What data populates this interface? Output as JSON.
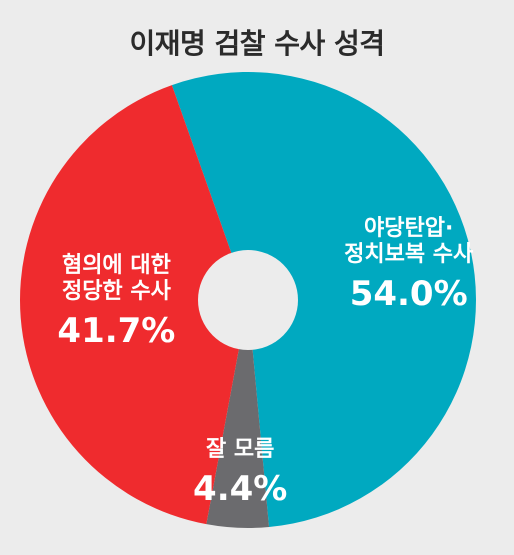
{
  "chart_data": {
    "type": "pie",
    "title": "이재명 검찰 수사 성격",
    "slices": [
      {
        "name_lines": [
          "야당탄압·",
          "정치보복 수사"
        ],
        "value": 54.0,
        "label": "54.0%",
        "color": "#00a9c0"
      },
      {
        "name_lines": [
          "잘 모름"
        ],
        "value": 4.4,
        "label": "4.4%",
        "color": "#6b6b6e"
      },
      {
        "name_lines": [
          "혐의에 대한",
          "정당한 수사"
        ],
        "value": 41.7,
        "label": "41.7%",
        "color": "#ef2b2e"
      }
    ],
    "donut": true,
    "start_angle_deg": -19.5
  }
}
